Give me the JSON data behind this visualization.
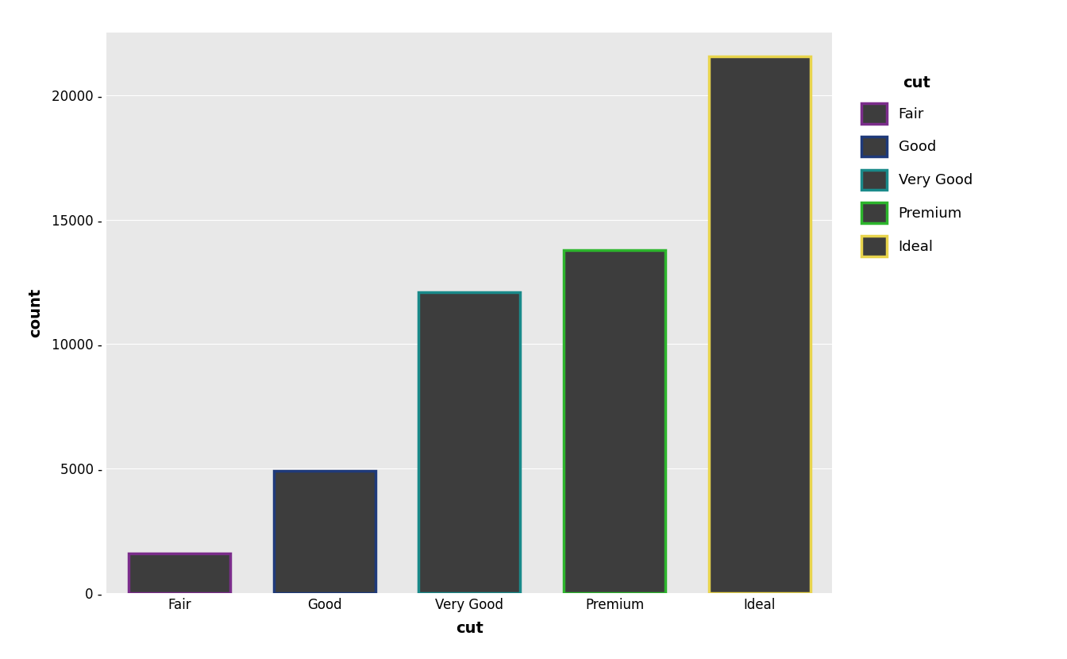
{
  "categories": [
    "Fair",
    "Good",
    "Very Good",
    "Premium",
    "Ideal"
  ],
  "values": [
    1610,
    4906,
    12082,
    13791,
    21551
  ],
  "bar_fill_color": "#3d3d3d",
  "border_colors": [
    "#7B2D8B",
    "#1F3A7A",
    "#1A8A8A",
    "#2DB52D",
    "#E8D44D"
  ],
  "bar_width": 0.7,
  "bg_color": "#e8e8e8",
  "panel_bg_color": "#e8e8e8",
  "grid_color": "#ffffff",
  "xlabel": "cut",
  "ylabel": "count",
  "ylim": [
    0,
    22500
  ],
  "yticks": [
    0,
    5000,
    10000,
    15000,
    20000
  ],
  "legend_title": "cut",
  "legend_labels": [
    "Fair",
    "Good",
    "Very Good",
    "Premium",
    "Ideal"
  ],
  "border_linewidth": 2.5,
  "tick_label_fontsize": 12,
  "axis_label_fontsize": 14
}
